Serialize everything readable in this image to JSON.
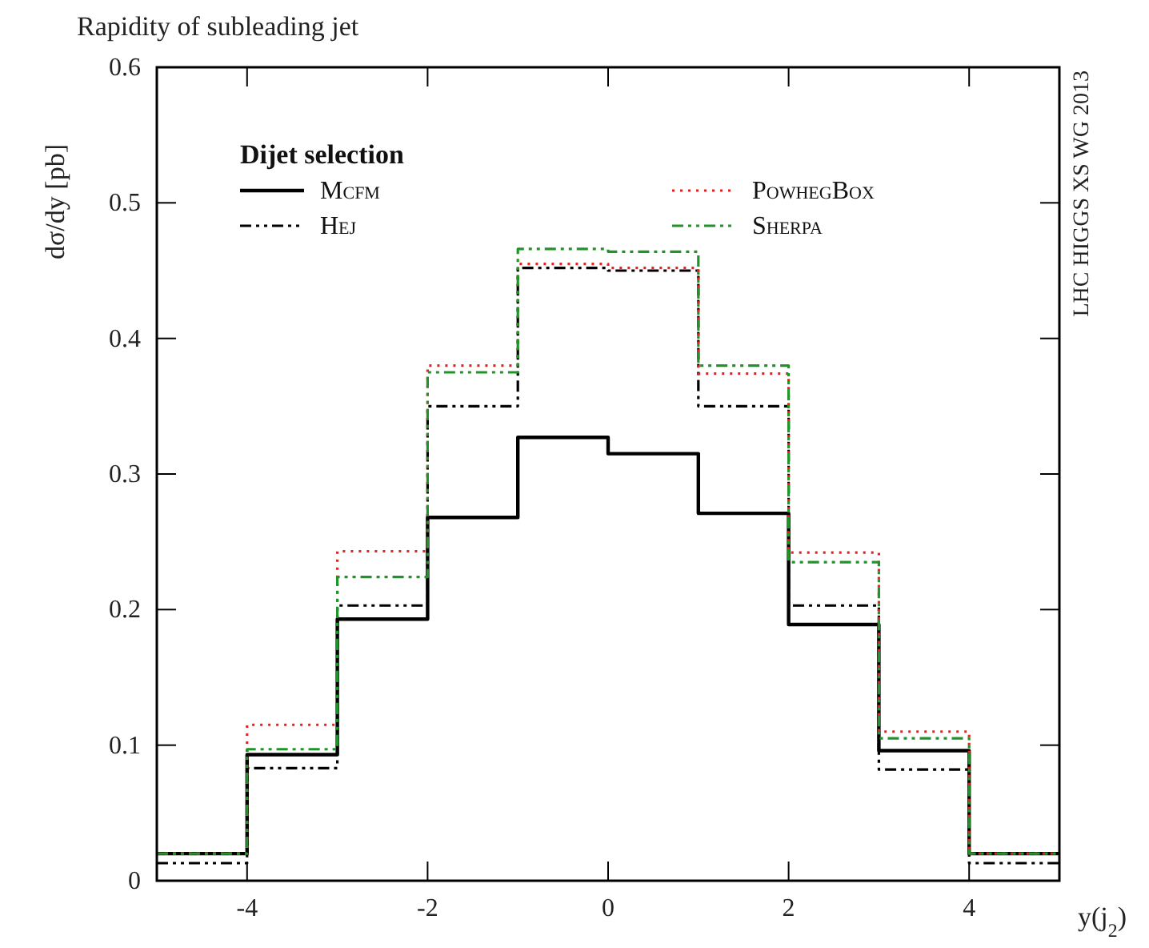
{
  "chart_data": {
    "type": "histogram",
    "title": "Rapidity of subleading jet",
    "ylabel": "dσ/dy [pb]",
    "xlabel": "y(j$_{2}$)",
    "legend_title": "Dijet selection",
    "legend": "top",
    "annotations": [
      "LHC HIGGS XS WG 2013"
    ],
    "bins": [
      -5,
      -4,
      -3,
      -2,
      -1,
      0,
      1,
      2,
      3,
      4,
      5
    ],
    "xlim": [
      -5,
      5
    ],
    "xticks": [
      -4,
      -2,
      0,
      2,
      4
    ],
    "ylim": [
      0,
      0.6
    ],
    "yticks": [
      0,
      0.1,
      0.2,
      0.3,
      0.4,
      0.5,
      0.6
    ],
    "series": [
      {
        "name": "Mcfm",
        "color": "#000000",
        "line_style": "solid",
        "values": [
          0.02,
          0.093,
          0.193,
          0.268,
          0.327,
          0.315,
          0.271,
          0.189,
          0.096,
          0.02
        ]
      },
      {
        "name": "Hej",
        "color": "#000000",
        "line_style": "dashed",
        "values": [
          0.013,
          0.083,
          0.203,
          0.35,
          0.452,
          0.45,
          0.35,
          0.203,
          0.082,
          0.013
        ]
      },
      {
        "name": "PowhegBox",
        "color": "#e8211f",
        "line_style": "dotted",
        "values": [
          0.02,
          0.115,
          0.243,
          0.38,
          0.455,
          0.452,
          0.374,
          0.242,
          0.11,
          0.02
        ]
      },
      {
        "name": "Sherpa",
        "color": "#22922a",
        "line_style": "dashed",
        "values": [
          0.02,
          0.097,
          0.224,
          0.375,
          0.466,
          0.464,
          0.38,
          0.235,
          0.105,
          0.02
        ]
      }
    ]
  }
}
